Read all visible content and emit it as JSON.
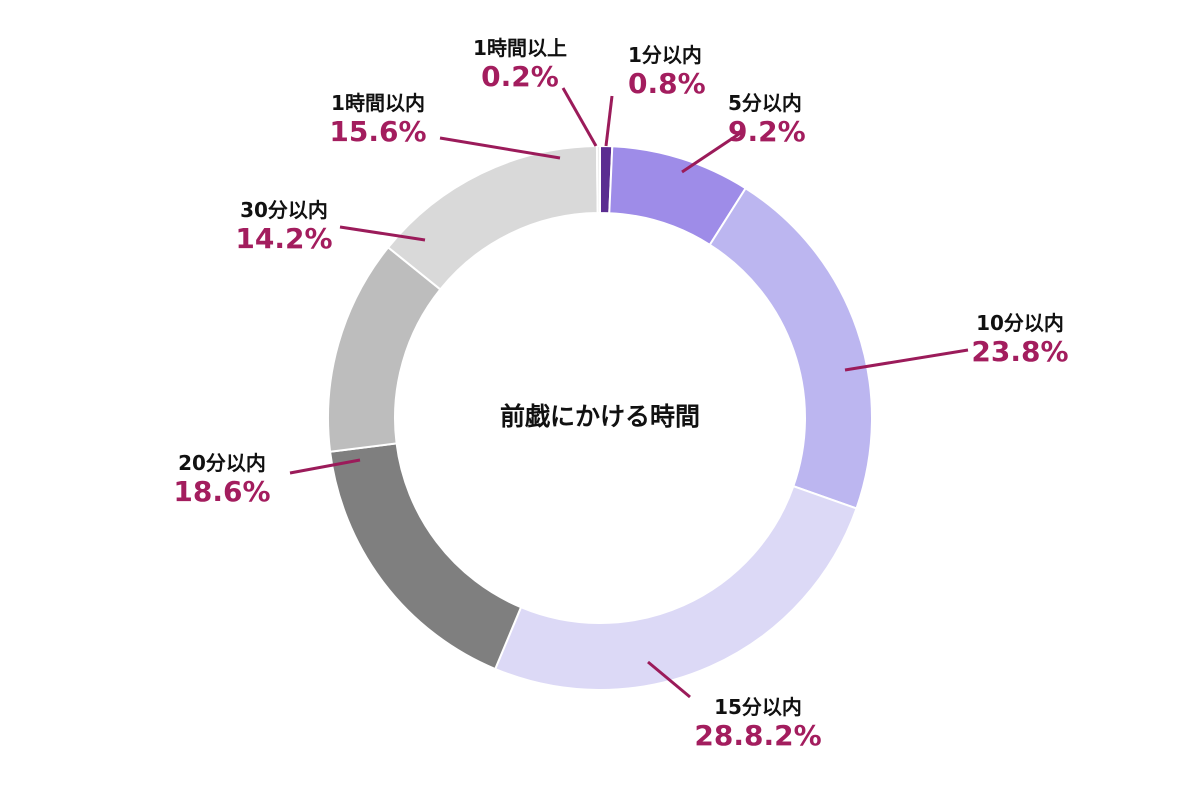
{
  "chart_data": {
    "type": "pie",
    "title": "前戯にかける時間",
    "categories": [
      "1分以内",
      "5分以内",
      "10分以内",
      "15分以内",
      "20分以内",
      "30分以内",
      "1時間以内",
      "1時間以上"
    ],
    "values": [
      0.8,
      9.2,
      23.8,
      28.8,
      18.6,
      14.2,
      15.6,
      0.2
    ],
    "value_labels": [
      "0.8%",
      "9.2%",
      "23.8%",
      "28.8.2%",
      "18.6%",
      "14.2%",
      "15.6%",
      "0.2%"
    ],
    "colors": [
      "#5b2d91",
      "#9e8ce8",
      "#bcb6f0",
      "#dcd9f6",
      "#7f7f7f",
      "#bdbdbd",
      "#d9d9d9",
      "#ececec"
    ],
    "style": "donut",
    "legend": "none",
    "leader_color": "#9b1b5a",
    "value_label_color": "#a31d5e"
  }
}
